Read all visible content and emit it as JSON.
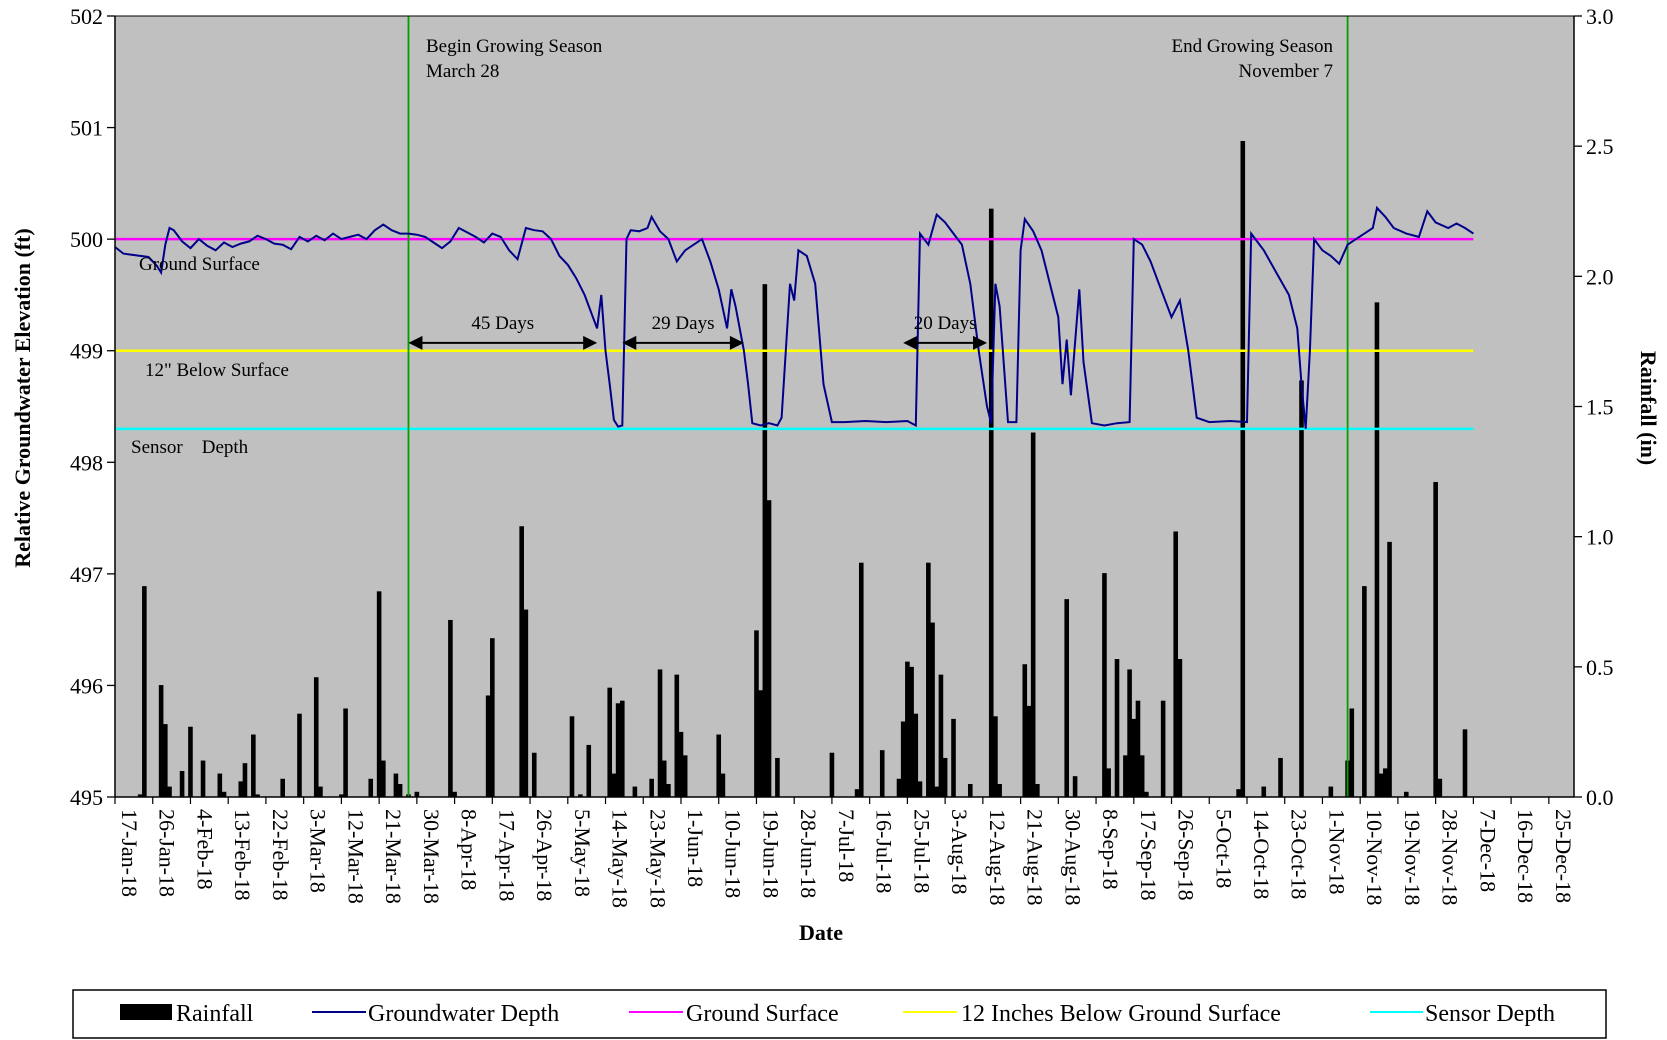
{
  "chart_data": {
    "type": "bar",
    "title": "",
    "xlabel": "Date",
    "ylabel_left": "Relative Groundwater Elevation (ft)",
    "ylabel_right": "Rainfall (in)",
    "x_range": [
      "2018-01-17",
      "2018-12-31"
    ],
    "x_tick_labels": [
      "17-Jan-18",
      "26-Jan-18",
      "4-Feb-18",
      "13-Feb-18",
      "22-Feb-18",
      "3-Mar-18",
      "12-Mar-18",
      "21-Mar-18",
      "30-Mar-18",
      "8-Apr-18",
      "17-Apr-18",
      "26-Apr-18",
      "5-May-18",
      "14-May-18",
      "23-May-18",
      "1-Jun-18",
      "10-Jun-18",
      "19-Jun-18",
      "28-Jun-18",
      "7-Jul-18",
      "16-Jul-18",
      "25-Jul-18",
      "3-Aug-18",
      "12-Aug-18",
      "21-Aug-18",
      "30-Aug-18",
      "8-Sep-18",
      "17-Sep-18",
      "26-Sep-18",
      "5-Oct-18",
      "14-Oct-18",
      "23-Oct-18",
      "1-Nov-18",
      "10-Nov-18",
      "19-Nov-18",
      "28-Nov-18",
      "7-Dec-18",
      "16-Dec-18",
      "25-Dec-18"
    ],
    "ylim_left": [
      495,
      502
    ],
    "y_ticks_left": [
      "495",
      "496",
      "497",
      "498",
      "499",
      "500",
      "501",
      "502"
    ],
    "ylim_right": [
      0,
      3.0
    ],
    "y_ticks_right": [
      "0.0",
      "0.5",
      "1.0",
      "1.5",
      "2.0",
      "2.5",
      "3.0"
    ],
    "grid": false,
    "legend_position": "bottom",
    "legend": [
      "Rainfall",
      "Groundwater Depth",
      "Ground Surface",
      "12 Inches Below Ground Surface",
      "Sensor Depth"
    ],
    "colors": {
      "plot_background": "#c0c0c0",
      "rainfall": "#000000",
      "groundwater": "#00008b",
      "ground_surface": "#ff00ff",
      "twelve_inch": "#ffff00",
      "sensor": "#00ffff",
      "season_line": "#00a000"
    },
    "reference_lines": {
      "ground_surface": 500.0,
      "twelve_inches_below": 499.0,
      "sensor_depth": 498.3
    },
    "season": {
      "begin_date": "2018-03-28",
      "end_date": "2018-11-07",
      "begin_label": "Begin Growing Season",
      "begin_date_label": "March  28",
      "end_label": "End Growing Season",
      "end_date_label": "November  7"
    },
    "annotations": {
      "ground_surface": "Ground Surface",
      "twelve_inch": "12\" Below Surface",
      "sensor": "Sensor    Depth"
    },
    "durations": [
      {
        "label": "45 Days",
        "start": "2018-03-28",
        "end": "2018-05-12"
      },
      {
        "label": "29 Days",
        "start": "2018-05-18",
        "end": "2018-06-16"
      },
      {
        "label": "20 Days",
        "start": "2018-07-24",
        "end": "2018-08-13"
      }
    ],
    "rainfall_series": {
      "name": "Rainfall",
      "points": [
        [
          "2018-01-23",
          0.01
        ],
        [
          "2018-01-24",
          0.81
        ],
        [
          "2018-01-28",
          0.43
        ],
        [
          "2018-01-29",
          0.28
        ],
        [
          "2018-01-30",
          0.04
        ],
        [
          "2018-02-02",
          0.1
        ],
        [
          "2018-02-04",
          0.27
        ],
        [
          "2018-02-07",
          0.14
        ],
        [
          "2018-02-11",
          0.09
        ],
        [
          "2018-02-12",
          0.02
        ],
        [
          "2018-02-16",
          0.06
        ],
        [
          "2018-02-17",
          0.13
        ],
        [
          "2018-02-19",
          0.24
        ],
        [
          "2018-02-20",
          0.01
        ],
        [
          "2018-02-26",
          0.07
        ],
        [
          "2018-03-02",
          0.32
        ],
        [
          "2018-03-06",
          0.46
        ],
        [
          "2018-03-07",
          0.04
        ],
        [
          "2018-03-12",
          0.01
        ],
        [
          "2018-03-13",
          0.34
        ],
        [
          "2018-03-19",
          0.07
        ],
        [
          "2018-03-21",
          0.79
        ],
        [
          "2018-03-22",
          0.14
        ],
        [
          "2018-03-25",
          0.09
        ],
        [
          "2018-03-26",
          0.05
        ],
        [
          "2018-03-28",
          0.01
        ],
        [
          "2018-03-30",
          0.02
        ],
        [
          "2018-04-07",
          0.68
        ],
        [
          "2018-04-08",
          0.02
        ],
        [
          "2018-04-16",
          0.39
        ],
        [
          "2018-04-17",
          0.61
        ],
        [
          "2018-04-24",
          1.04
        ],
        [
          "2018-04-25",
          0.72
        ],
        [
          "2018-04-27",
          0.17
        ],
        [
          "2018-05-06",
          0.31
        ],
        [
          "2018-05-08",
          0.01
        ],
        [
          "2018-05-10",
          0.2
        ],
        [
          "2018-05-15",
          0.42
        ],
        [
          "2018-05-16",
          0.09
        ],
        [
          "2018-05-17",
          0.36
        ],
        [
          "2018-05-18",
          0.37
        ],
        [
          "2018-05-21",
          0.04
        ],
        [
          "2018-05-25",
          0.07
        ],
        [
          "2018-05-27",
          0.49
        ],
        [
          "2018-05-28",
          0.14
        ],
        [
          "2018-05-29",
          0.05
        ],
        [
          "2018-05-31",
          0.47
        ],
        [
          "2018-06-01",
          0.25
        ],
        [
          "2018-06-02",
          0.16
        ],
        [
          "2018-06-10",
          0.24
        ],
        [
          "2018-06-11",
          0.09
        ],
        [
          "2018-06-19",
          0.64
        ],
        [
          "2018-06-20",
          0.41
        ],
        [
          "2018-06-21",
          1.97
        ],
        [
          "2018-06-22",
          1.14
        ],
        [
          "2018-06-24",
          0.15
        ],
        [
          "2018-07-07",
          0.17
        ],
        [
          "2018-07-13",
          0.03
        ],
        [
          "2018-07-14",
          0.9
        ],
        [
          "2018-07-19",
          0.18
        ],
        [
          "2018-07-23",
          0.07
        ],
        [
          "2018-07-24",
          0.29
        ],
        [
          "2018-07-25",
          0.52
        ],
        [
          "2018-07-26",
          0.5
        ],
        [
          "2018-07-27",
          0.32
        ],
        [
          "2018-07-28",
          0.06
        ],
        [
          "2018-07-30",
          0.9
        ],
        [
          "2018-07-31",
          0.67
        ],
        [
          "2018-08-01",
          0.04
        ],
        [
          "2018-08-02",
          0.47
        ],
        [
          "2018-08-03",
          0.15
        ],
        [
          "2018-08-05",
          0.3
        ],
        [
          "2018-08-09",
          0.05
        ],
        [
          "2018-08-14",
          2.26
        ],
        [
          "2018-08-15",
          0.31
        ],
        [
          "2018-08-16",
          0.05
        ],
        [
          "2018-08-22",
          0.51
        ],
        [
          "2018-08-23",
          0.35
        ],
        [
          "2018-08-24",
          1.4
        ],
        [
          "2018-08-25",
          0.05
        ],
        [
          "2018-09-01",
          0.76
        ],
        [
          "2018-09-03",
          0.08
        ],
        [
          "2018-09-10",
          0.86
        ],
        [
          "2018-09-11",
          0.11
        ],
        [
          "2018-09-13",
          0.53
        ],
        [
          "2018-09-15",
          0.16
        ],
        [
          "2018-09-16",
          0.49
        ],
        [
          "2018-09-17",
          0.3
        ],
        [
          "2018-09-18",
          0.37
        ],
        [
          "2018-09-19",
          0.16
        ],
        [
          "2018-09-20",
          0.02
        ],
        [
          "2018-09-24",
          0.37
        ],
        [
          "2018-09-27",
          1.02
        ],
        [
          "2018-09-28",
          0.53
        ],
        [
          "2018-10-12",
          0.03
        ],
        [
          "2018-10-13",
          2.52
        ],
        [
          "2018-10-18",
          0.04
        ],
        [
          "2018-10-22",
          0.15
        ],
        [
          "2018-10-27",
          1.6
        ],
        [
          "2018-11-03",
          0.04
        ],
        [
          "2018-11-07",
          0.14
        ],
        [
          "2018-11-08",
          0.34
        ],
        [
          "2018-11-11",
          0.81
        ],
        [
          "2018-11-14",
          1.9
        ],
        [
          "2018-11-15",
          0.09
        ],
        [
          "2018-11-16",
          0.11
        ],
        [
          "2018-11-17",
          0.98
        ],
        [
          "2018-11-21",
          0.02
        ],
        [
          "2018-11-28",
          1.21
        ],
        [
          "2018-11-29",
          0.07
        ],
        [
          "2018-12-05",
          0.26
        ]
      ]
    },
    "groundwater_series": {
      "name": "Groundwater Depth",
      "points": [
        [
          "2018-01-17",
          499.93
        ],
        [
          "2018-01-19",
          499.87
        ],
        [
          "2018-01-21",
          499.86
        ],
        [
          "2018-01-23",
          499.85
        ],
        [
          "2018-01-25",
          499.84
        ],
        [
          "2018-01-27",
          499.76
        ],
        [
          "2018-01-28",
          499.7
        ],
        [
          "2018-01-29",
          499.95
        ],
        [
          "2018-01-30",
          500.1
        ],
        [
          "2018-01-31",
          500.08
        ],
        [
          "2018-02-02",
          499.98
        ],
        [
          "2018-02-04",
          499.92
        ],
        [
          "2018-02-06",
          500.0
        ],
        [
          "2018-02-08",
          499.94
        ],
        [
          "2018-02-10",
          499.9
        ],
        [
          "2018-02-12",
          499.97
        ],
        [
          "2018-02-14",
          499.93
        ],
        [
          "2018-02-16",
          499.96
        ],
        [
          "2018-02-18",
          499.98
        ],
        [
          "2018-02-20",
          500.03
        ],
        [
          "2018-02-22",
          500.0
        ],
        [
          "2018-02-24",
          499.96
        ],
        [
          "2018-02-26",
          499.95
        ],
        [
          "2018-02-28",
          499.91
        ],
        [
          "2018-03-02",
          500.02
        ],
        [
          "2018-03-04",
          499.98
        ],
        [
          "2018-03-06",
          500.03
        ],
        [
          "2018-03-08",
          499.99
        ],
        [
          "2018-03-10",
          500.05
        ],
        [
          "2018-03-12",
          500.0
        ],
        [
          "2018-03-14",
          500.02
        ],
        [
          "2018-03-16",
          500.04
        ],
        [
          "2018-03-18",
          500.0
        ],
        [
          "2018-03-20",
          500.08
        ],
        [
          "2018-03-22",
          500.13
        ],
        [
          "2018-03-24",
          500.08
        ],
        [
          "2018-03-26",
          500.05
        ],
        [
          "2018-03-28",
          500.05
        ],
        [
          "2018-03-30",
          500.04
        ],
        [
          "2018-04-01",
          500.02
        ],
        [
          "2018-04-03",
          499.97
        ],
        [
          "2018-04-05",
          499.92
        ],
        [
          "2018-04-07",
          499.98
        ],
        [
          "2018-04-09",
          500.1
        ],
        [
          "2018-04-11",
          500.06
        ],
        [
          "2018-04-13",
          500.02
        ],
        [
          "2018-04-15",
          499.97
        ],
        [
          "2018-04-17",
          500.05
        ],
        [
          "2018-04-19",
          500.02
        ],
        [
          "2018-04-21",
          499.9
        ],
        [
          "2018-04-23",
          499.82
        ],
        [
          "2018-04-25",
          500.1
        ],
        [
          "2018-04-27",
          500.08
        ],
        [
          "2018-04-29",
          500.07
        ],
        [
          "2018-05-01",
          500.0
        ],
        [
          "2018-05-03",
          499.85
        ],
        [
          "2018-05-05",
          499.77
        ],
        [
          "2018-05-07",
          499.65
        ],
        [
          "2018-05-09",
          499.5
        ],
        [
          "2018-05-11",
          499.3
        ],
        [
          "2018-05-12",
          499.2
        ],
        [
          "2018-05-13",
          499.5
        ],
        [
          "2018-05-14",
          499.0
        ],
        [
          "2018-05-15",
          498.7
        ],
        [
          "2018-05-16",
          498.38
        ],
        [
          "2018-05-17",
          498.32
        ],
        [
          "2018-05-18",
          498.33
        ],
        [
          "2018-05-19",
          500.0
        ],
        [
          "2018-05-20",
          500.08
        ],
        [
          "2018-05-22",
          500.07
        ],
        [
          "2018-05-24",
          500.1
        ],
        [
          "2018-05-25",
          500.2
        ],
        [
          "2018-05-27",
          500.07
        ],
        [
          "2018-05-29",
          500.0
        ],
        [
          "2018-05-31",
          499.8
        ],
        [
          "2018-06-02",
          499.9
        ],
        [
          "2018-06-04",
          499.95
        ],
        [
          "2018-06-06",
          500.0
        ],
        [
          "2018-06-08",
          499.8
        ],
        [
          "2018-06-10",
          499.55
        ],
        [
          "2018-06-12",
          499.2
        ],
        [
          "2018-06-13",
          499.55
        ],
        [
          "2018-06-14",
          499.4
        ],
        [
          "2018-06-16",
          499.0
        ],
        [
          "2018-06-17",
          498.7
        ],
        [
          "2018-06-18",
          498.35
        ],
        [
          "2018-06-20",
          498.33
        ],
        [
          "2018-06-22",
          498.35
        ],
        [
          "2018-06-24",
          498.33
        ],
        [
          "2018-06-25",
          498.4
        ],
        [
          "2018-06-26",
          499.0
        ],
        [
          "2018-06-27",
          499.6
        ],
        [
          "2018-06-28",
          499.45
        ],
        [
          "2018-06-29",
          499.9
        ],
        [
          "2018-07-01",
          499.85
        ],
        [
          "2018-07-03",
          499.6
        ],
        [
          "2018-07-05",
          498.7
        ],
        [
          "2018-07-07",
          498.36
        ],
        [
          "2018-07-10",
          498.36
        ],
        [
          "2018-07-15",
          498.37
        ],
        [
          "2018-07-20",
          498.36
        ],
        [
          "2018-07-25",
          498.37
        ],
        [
          "2018-07-27",
          498.33
        ],
        [
          "2018-07-28",
          500.05
        ],
        [
          "2018-07-30",
          499.95
        ],
        [
          "2018-08-01",
          500.22
        ],
        [
          "2018-08-03",
          500.15
        ],
        [
          "2018-08-05",
          500.05
        ],
        [
          "2018-08-07",
          499.95
        ],
        [
          "2018-08-09",
          499.6
        ],
        [
          "2018-08-11",
          499.0
        ],
        [
          "2018-08-13",
          498.5
        ],
        [
          "2018-08-14",
          498.35
        ],
        [
          "2018-08-15",
          499.6
        ],
        [
          "2018-08-16",
          499.4
        ],
        [
          "2018-08-18",
          498.36
        ],
        [
          "2018-08-20",
          498.36
        ],
        [
          "2018-08-21",
          499.9
        ],
        [
          "2018-08-22",
          500.18
        ],
        [
          "2018-08-24",
          500.07
        ],
        [
          "2018-08-26",
          499.9
        ],
        [
          "2018-08-28",
          499.6
        ],
        [
          "2018-08-30",
          499.3
        ],
        [
          "2018-08-31",
          498.7
        ],
        [
          "2018-09-01",
          499.1
        ],
        [
          "2018-09-02",
          498.6
        ],
        [
          "2018-09-04",
          499.55
        ],
        [
          "2018-09-05",
          498.9
        ],
        [
          "2018-09-07",
          498.35
        ],
        [
          "2018-09-10",
          498.33
        ],
        [
          "2018-09-13",
          498.35
        ],
        [
          "2018-09-16",
          498.36
        ],
        [
          "2018-09-17",
          500.0
        ],
        [
          "2018-09-19",
          499.95
        ],
        [
          "2018-09-21",
          499.8
        ],
        [
          "2018-09-23",
          499.6
        ],
        [
          "2018-09-26",
          499.3
        ],
        [
          "2018-09-28",
          499.45
        ],
        [
          "2018-09-30",
          499.0
        ],
        [
          "2018-10-02",
          498.4
        ],
        [
          "2018-10-05",
          498.36
        ],
        [
          "2018-10-10",
          498.37
        ],
        [
          "2018-10-14",
          498.36
        ],
        [
          "2018-10-15",
          500.05
        ],
        [
          "2018-10-18",
          499.9
        ],
        [
          "2018-10-21",
          499.7
        ],
        [
          "2018-10-24",
          499.5
        ],
        [
          "2018-10-26",
          499.2
        ],
        [
          "2018-10-27",
          498.7
        ],
        [
          "2018-10-28",
          498.3
        ],
        [
          "2018-10-29",
          499.0
        ],
        [
          "2018-10-30",
          500.0
        ],
        [
          "2018-11-01",
          499.9
        ],
        [
          "2018-11-03",
          499.85
        ],
        [
          "2018-11-05",
          499.78
        ],
        [
          "2018-11-07",
          499.95
        ],
        [
          "2018-11-09",
          500.0
        ],
        [
          "2018-11-11",
          500.05
        ],
        [
          "2018-11-13",
          500.1
        ],
        [
          "2018-11-14",
          500.28
        ],
        [
          "2018-11-16",
          500.2
        ],
        [
          "2018-11-18",
          500.1
        ],
        [
          "2018-11-21",
          500.05
        ],
        [
          "2018-11-24",
          500.02
        ],
        [
          "2018-11-26",
          500.25
        ],
        [
          "2018-11-28",
          500.15
        ],
        [
          "2018-12-01",
          500.1
        ],
        [
          "2018-12-03",
          500.14
        ],
        [
          "2018-12-05",
          500.1
        ],
        [
          "2018-12-07",
          500.05
        ]
      ]
    }
  }
}
